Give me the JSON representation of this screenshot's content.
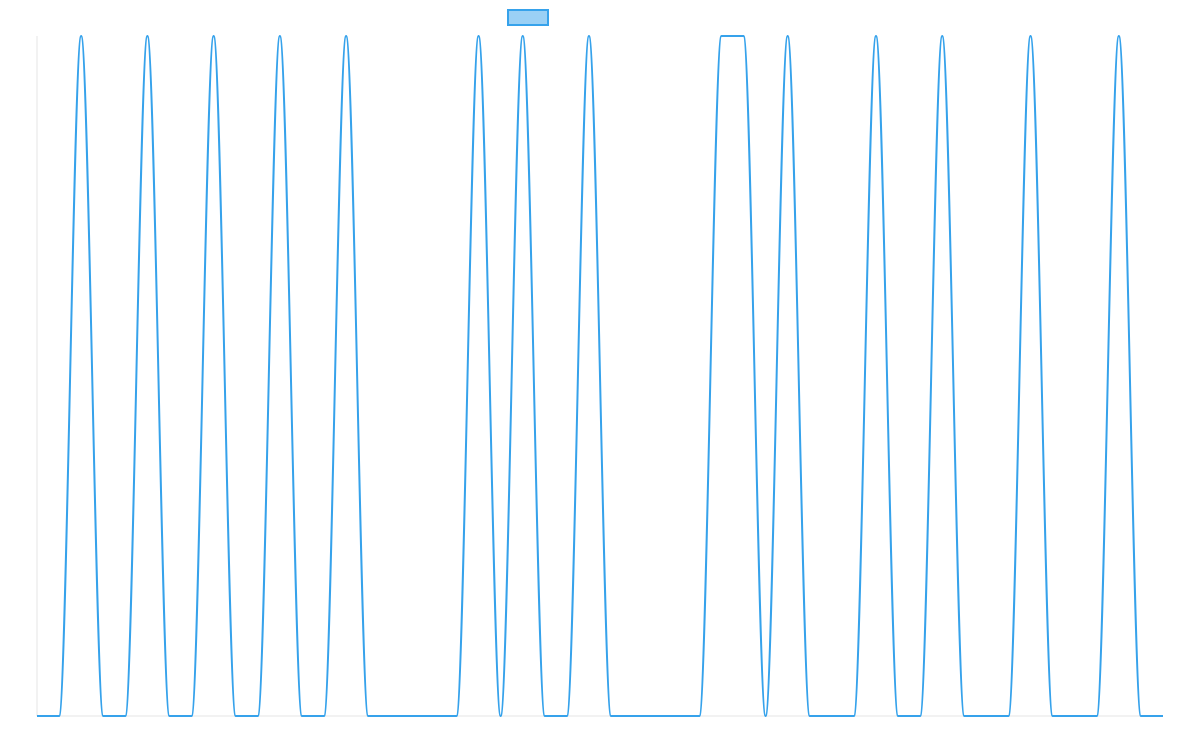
{
  "chart_data": {
    "type": "line",
    "legend": "top",
    "ylim": [
      0,
      1
    ],
    "interpolation": "monotone",
    "series": [
      {
        "color": "#36a2eb",
        "fill": "#9ad0f5",
        "values": [
          0,
          0,
          1,
          0,
          0,
          1,
          0,
          0,
          1,
          0,
          0,
          1,
          0,
          0,
          1,
          0,
          0,
          0,
          0,
          0,
          1,
          0,
          1,
          0,
          0,
          1,
          0,
          0,
          0,
          0,
          0,
          1,
          1,
          0,
          1,
          0,
          0,
          0,
          1,
          0,
          0,
          1,
          0,
          0,
          0,
          1,
          0,
          0,
          0,
          1,
          0,
          0
        ]
      }
    ]
  }
}
